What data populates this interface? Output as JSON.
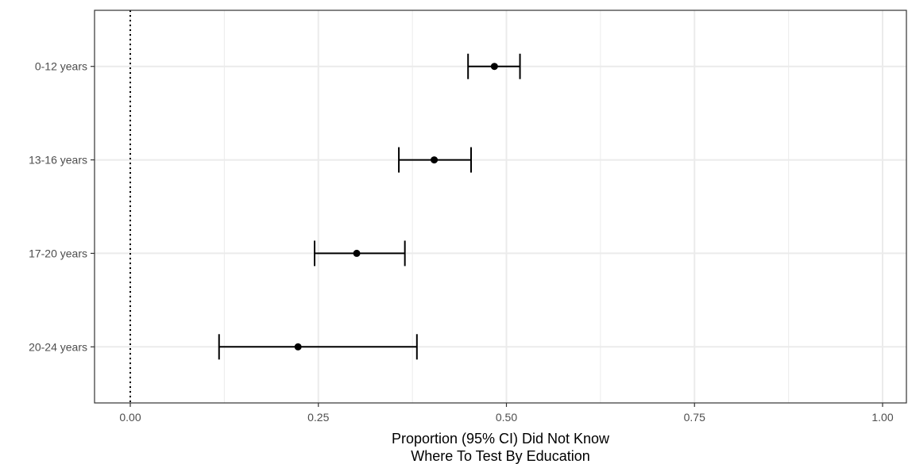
{
  "chart_data": {
    "type": "forest",
    "xlabel": [
      "Proportion (95% CI) Did Not Know",
      "Where To Test By Education"
    ],
    "ylabel": "",
    "xlim": [
      -0.047,
      1.05
    ],
    "x_ticks": [
      0.0,
      0.25,
      0.5,
      0.75,
      1.0
    ],
    "x_tick_labels": [
      "0.00",
      "0.25",
      "0.50",
      "0.75",
      "1.00"
    ],
    "categories": [
      "0-12 years",
      "13-16 years",
      "17-20 years",
      "20-24 years"
    ],
    "estimates": [
      0.484,
      0.404,
      0.301,
      0.223
    ],
    "ci_lower": [
      0.449,
      0.357,
      0.245,
      0.118
    ],
    "ci_upper": [
      0.518,
      0.453,
      0.365,
      0.381
    ],
    "reference_line": 0.0,
    "grid": true,
    "theme": "bw",
    "colors": {
      "points": "#000000",
      "grid": "#ebebeb",
      "panel_border": "#333333",
      "reference_line": "#000000"
    }
  }
}
